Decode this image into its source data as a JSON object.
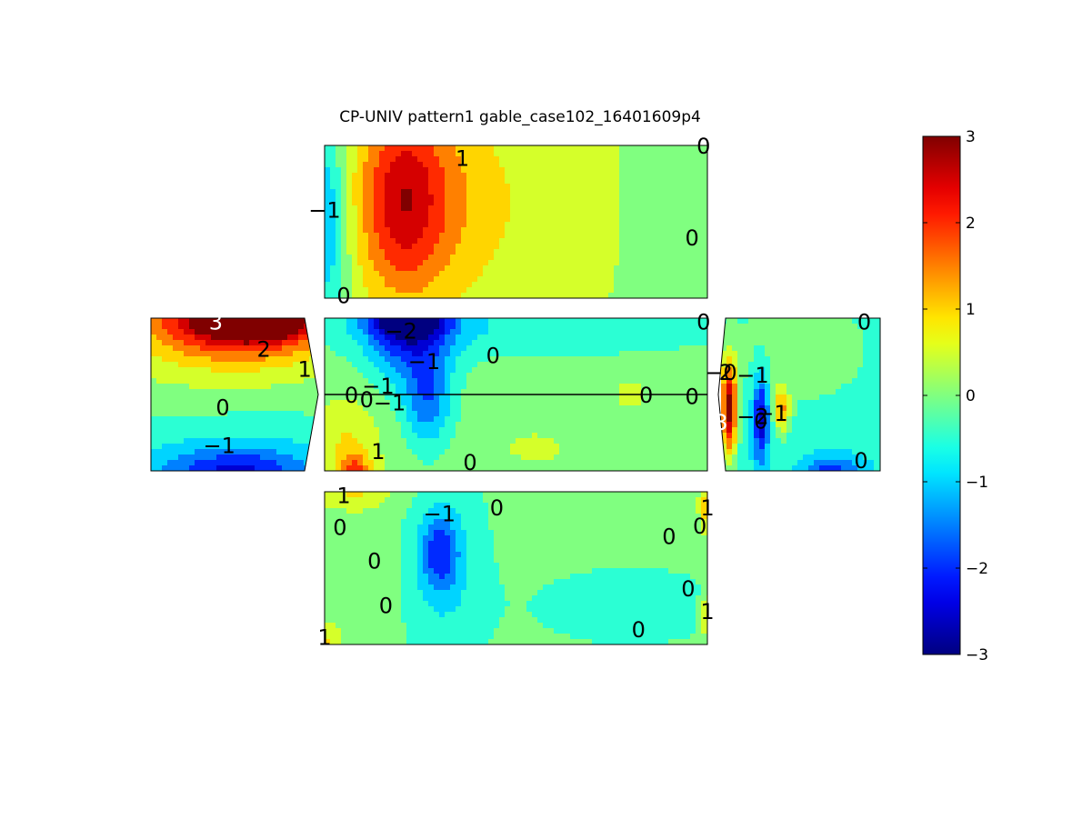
{
  "chart_data": {
    "type": "heatmap",
    "subtype": "filled-contour",
    "title": "CP-UNIV pattern1 gable_case102_16401609p4",
    "colormap": "jet",
    "clim": [
      -3,
      3
    ],
    "colorbar": {
      "ticks": [
        "3",
        "2",
        "1",
        "0",
        "−1",
        "−2",
        "−3"
      ],
      "position": "right"
    },
    "grid": false,
    "panels": [
      {
        "name": "top-face",
        "fields": [
          {
            "v": 0.2
          },
          {
            "v": 0.6,
            "cx": 0.45,
            "cy": 0.4,
            "rx": 0.38,
            "ry": 0.75
          },
          {
            "v": 1.2,
            "cx": 0.25,
            "cy": 0.35,
            "rx": 0.17,
            "ry": 0.7
          },
          {
            "v": 1.6,
            "cx": 0.2,
            "cy": 0.35,
            "rx": 0.1,
            "ry": 0.6
          },
          {
            "v": -0.3,
            "cx": 0.93,
            "cy": 0.5,
            "rx": 0.14,
            "ry": 0.9
          },
          {
            "v": -1.4,
            "cx": 0.0,
            "cy": 0.5,
            "rx": 0.06,
            "ry": 0.65
          }
        ],
        "labels": [
          {
            "text": "1",
            "fx": 0.36,
            "fy": 0.08
          },
          {
            "text": "0",
            "fx": 0.99,
            "fy": 0.0
          },
          {
            "text": "−1",
            "fx": 0.0,
            "fy": 0.42
          },
          {
            "text": "0",
            "fx": 0.96,
            "fy": 0.6
          },
          {
            "text": "0",
            "fx": 0.05,
            "fy": 0.98
          }
        ]
      },
      {
        "name": "left-face",
        "fields": [
          {
            "v": -0.2
          },
          {
            "v": 1.2,
            "cx": 0.45,
            "cy": 0.0,
            "rx": 0.8,
            "ry": 0.45
          },
          {
            "v": 2.4,
            "cx": 0.55,
            "cy": 0.0,
            "rx": 0.45,
            "ry": 0.22
          },
          {
            "v": 3.0,
            "cx": 0.62,
            "cy": 0.0,
            "rx": 0.25,
            "ry": 0.1
          },
          {
            "v": -1.0,
            "cx": 0.5,
            "cy": 1.0,
            "rx": 0.8,
            "ry": 0.35
          },
          {
            "v": -1.6,
            "cx": 0.5,
            "cy": 1.0,
            "rx": 0.4,
            "ry": 0.14
          }
        ],
        "labels": [
          {
            "text": "3",
            "fx": 0.38,
            "fy": 0.02,
            "light": true
          },
          {
            "text": "2",
            "fx": 0.66,
            "fy": 0.2
          },
          {
            "text": "1",
            "fx": 0.9,
            "fy": 0.33
          },
          {
            "text": "0",
            "fx": 0.42,
            "fy": 0.58
          },
          {
            "text": "−1",
            "fx": 0.4,
            "fy": 0.83
          }
        ]
      },
      {
        "name": "middle-face",
        "fields": [
          {
            "v": 0.0
          },
          {
            "v": -0.7,
            "cx": 0.5,
            "cy": 0.05,
            "rx": 0.6,
            "ry": 0.2
          },
          {
            "v": -1.8,
            "cx": 0.22,
            "cy": 0.15,
            "rx": 0.11,
            "ry": 0.3
          },
          {
            "v": -2.5,
            "cx": 0.22,
            "cy": 0.0,
            "rx": 0.1,
            "ry": 0.12
          },
          {
            "v": -1.5,
            "cx": 0.27,
            "cy": 0.55,
            "rx": 0.06,
            "ry": 0.3
          },
          {
            "v": 0.8,
            "cx": 0.06,
            "cy": 0.85,
            "rx": 0.08,
            "ry": 0.32
          },
          {
            "v": 1.4,
            "cx": 0.08,
            "cy": 1.0,
            "rx": 0.04,
            "ry": 0.12
          },
          {
            "v": 0.4,
            "cx": 0.55,
            "cy": 0.85,
            "rx": 0.09,
            "ry": 0.12
          },
          {
            "v": 0.4,
            "cx": 0.8,
            "cy": 0.5,
            "rx": 0.05,
            "ry": 0.12
          }
        ],
        "labels": [
          {
            "text": "−2",
            "fx": 0.2,
            "fy": 0.08
          },
          {
            "text": "−1",
            "fx": 0.26,
            "fy": 0.28
          },
          {
            "text": "0",
            "fx": 0.44,
            "fy": 0.24
          },
          {
            "text": "0",
            "fx": 0.99,
            "fy": 0.02
          },
          {
            "text": "−1",
            "fx": 0.14,
            "fy": 0.44
          },
          {
            "text": "0",
            "fx": 0.07,
            "fy": 0.5
          },
          {
            "text": "0",
            "fx": 0.11,
            "fy": 0.53
          },
          {
            "text": "−1",
            "fx": 0.17,
            "fy": 0.55
          },
          {
            "text": "0",
            "fx": 0.84,
            "fy": 0.5
          },
          {
            "text": "0",
            "fx": 0.96,
            "fy": 0.51
          },
          {
            "text": "1",
            "fx": 0.14,
            "fy": 0.87
          },
          {
            "text": "0",
            "fx": 0.38,
            "fy": 0.94
          }
        ]
      },
      {
        "name": "right-face",
        "fields": [
          {
            "v": -0.6
          },
          {
            "v": 0.0,
            "cx": 0.5,
            "cy": 0.2,
            "rx": 0.55,
            "ry": 0.45
          },
          {
            "v": 2.8,
            "cx": 0.05,
            "cy": 0.6,
            "rx": 0.05,
            "ry": 0.32
          },
          {
            "v": -2.8,
            "cx": 0.25,
            "cy": 0.65,
            "rx": 0.05,
            "ry": 0.28
          },
          {
            "v": 1.2,
            "cx": 0.38,
            "cy": 0.6,
            "rx": 0.05,
            "ry": 0.15
          },
          {
            "v": -2.0,
            "cx": 0.7,
            "cy": 1.0,
            "rx": 0.18,
            "ry": 0.1
          }
        ],
        "labels": [
          {
            "text": "0",
            "fx": 0.9,
            "fy": 0.02
          },
          {
            "text": "−0",
            "fx": 0.0,
            "fy": 0.35
          },
          {
            "text": "2",
            "fx": 0.03,
            "fy": 0.35
          },
          {
            "text": "−1",
            "fx": 0.2,
            "fy": 0.37
          },
          {
            "text": "3",
            "fx": 0.0,
            "fy": 0.68,
            "light": true
          },
          {
            "text": "−2",
            "fx": 0.2,
            "fy": 0.64
          },
          {
            "text": "−1",
            "fx": 0.32,
            "fy": 0.62
          },
          {
            "text": "0",
            "fx": 0.25,
            "fy": 0.67
          },
          {
            "text": "0",
            "fx": 0.88,
            "fy": 0.93
          }
        ]
      },
      {
        "name": "bottom-face",
        "fields": [
          {
            "v": 0.0
          },
          {
            "v": -0.7,
            "cx": 0.32,
            "cy": 0.55,
            "rx": 0.12,
            "ry": 0.8
          },
          {
            "v": -0.7,
            "cx": 0.8,
            "cy": 0.75,
            "rx": 0.25,
            "ry": 0.25
          },
          {
            "v": -1.6,
            "cx": 0.3,
            "cy": 0.4,
            "rx": 0.05,
            "ry": 0.25
          },
          {
            "v": 0.8,
            "cx": 0.08,
            "cy": 0.0,
            "rx": 0.1,
            "ry": 0.12
          },
          {
            "v": 1.2,
            "cx": 1.0,
            "cy": 0.1,
            "rx": 0.02,
            "ry": 0.15
          },
          {
            "v": 1.2,
            "cx": 1.0,
            "cy": 0.8,
            "rx": 0.02,
            "ry": 0.15
          },
          {
            "v": 0.8,
            "cx": 0.0,
            "cy": 1.0,
            "rx": 0.04,
            "ry": 0.15
          }
        ],
        "labels": [
          {
            "text": "1",
            "fx": 0.05,
            "fy": 0.02
          },
          {
            "text": "−1",
            "fx": 0.3,
            "fy": 0.14
          },
          {
            "text": "0",
            "fx": 0.45,
            "fy": 0.1
          },
          {
            "text": "0",
            "fx": 0.04,
            "fy": 0.23
          },
          {
            "text": "0",
            "fx": 0.13,
            "fy": 0.45
          },
          {
            "text": "0",
            "fx": 0.9,
            "fy": 0.29
          },
          {
            "text": "0",
            "fx": 0.98,
            "fy": 0.22
          },
          {
            "text": "1",
            "fx": 1.0,
            "fy": 0.1
          },
          {
            "text": "0",
            "fx": 0.95,
            "fy": 0.63
          },
          {
            "text": "1",
            "fx": 1.0,
            "fy": 0.78
          },
          {
            "text": "0",
            "fx": 0.16,
            "fy": 0.74
          },
          {
            "text": "0",
            "fx": 0.82,
            "fy": 0.9
          },
          {
            "text": "1",
            "fx": 0.0,
            "fy": 0.95
          }
        ]
      }
    ]
  }
}
